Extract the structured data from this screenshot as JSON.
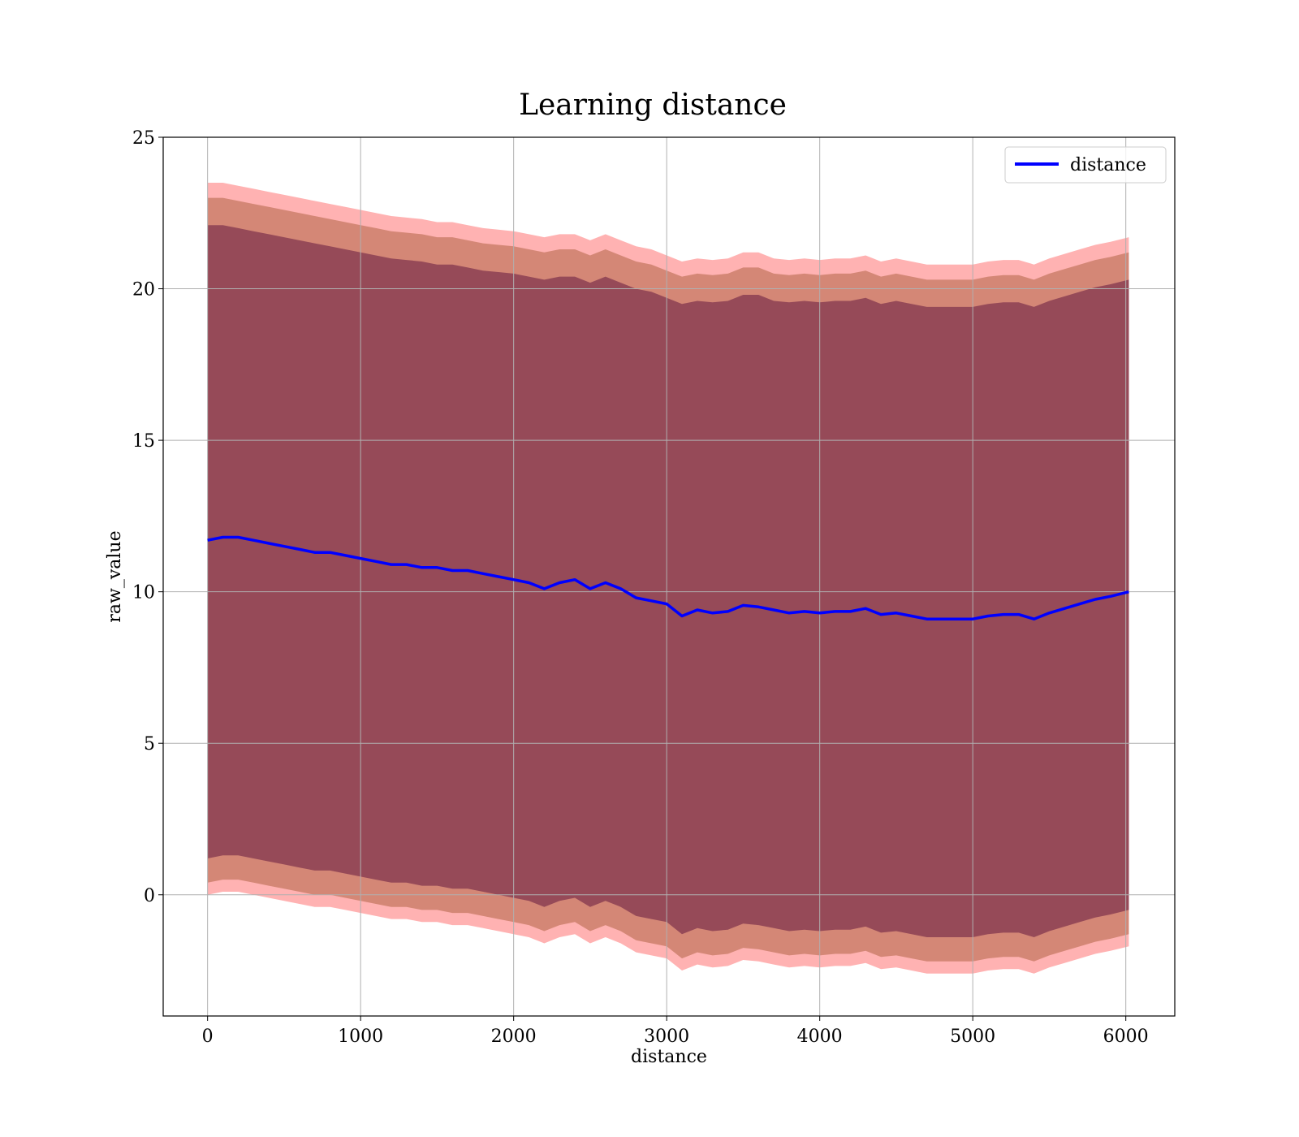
{
  "chart_data": {
    "type": "line",
    "title": "Learning distance",
    "xlabel": "distance",
    "ylabel": "raw_value",
    "xlim": [
      -290,
      6320
    ],
    "ylim": [
      -4,
      25
    ],
    "xticks": [
      0,
      1000,
      2000,
      3000,
      4000,
      5000,
      6000
    ],
    "yticks": [
      0,
      5,
      10,
      15,
      20,
      25
    ],
    "grid": true,
    "legend_position": "top-right",
    "colors": {
      "line": "#0000ff",
      "band_outer": "#ff0000",
      "band_middle": "#a0522d",
      "band_inner": "#4b0035",
      "grid": "#b0b0b0"
    },
    "series": [
      {
        "name": "distance",
        "x": [
          0,
          100,
          200,
          300,
          400,
          500,
          600,
          700,
          800,
          900,
          1000,
          1100,
          1200,
          1300,
          1400,
          1500,
          1600,
          1700,
          1800,
          1900,
          2000,
          2100,
          2200,
          2300,
          2400,
          2500,
          2600,
          2700,
          2800,
          2900,
          3000,
          3100,
          3200,
          3300,
          3400,
          3500,
          3600,
          3700,
          3800,
          3900,
          4000,
          4100,
          4200,
          4300,
          4400,
          4500,
          4600,
          4700,
          4800,
          4900,
          5000,
          5100,
          5200,
          5300,
          5400,
          5500,
          5600,
          5700,
          5800,
          5900,
          6020
        ],
        "y": [
          11.7,
          11.8,
          11.8,
          11.7,
          11.6,
          11.5,
          11.4,
          11.3,
          11.3,
          11.2,
          11.1,
          11.0,
          10.9,
          10.9,
          10.8,
          10.8,
          10.7,
          10.7,
          10.6,
          10.5,
          10.4,
          10.3,
          10.1,
          10.3,
          10.4,
          10.1,
          10.3,
          10.1,
          9.8,
          9.7,
          9.6,
          9.2,
          9.4,
          9.3,
          9.35,
          9.55,
          9.5,
          9.4,
          9.3,
          9.35,
          9.3,
          9.35,
          9.35,
          9.45,
          9.25,
          9.3,
          9.2,
          9.1,
          9.1,
          9.1,
          9.1,
          9.2,
          9.25,
          9.25,
          9.1,
          9.3,
          9.45,
          9.6,
          9.75,
          9.85,
          10.0
        ]
      }
    ],
    "bands": {
      "outer_upper": [
        23.5,
        23.5,
        23.4,
        23.3,
        23.2,
        23.1,
        23.0,
        22.9,
        22.8,
        22.7,
        22.6,
        22.5,
        22.4,
        22.35,
        22.3,
        22.2,
        22.2,
        22.1,
        22.0,
        21.95,
        21.9,
        21.8,
        21.7,
        21.8,
        21.8,
        21.6,
        21.8,
        21.6,
        21.4,
        21.3,
        21.1,
        20.9,
        21.0,
        20.95,
        21.0,
        21.2,
        21.2,
        21.0,
        20.95,
        21.0,
        20.95,
        21.0,
        21.0,
        21.1,
        20.9,
        21.0,
        20.9,
        20.8,
        20.8,
        20.8,
        20.8,
        20.9,
        20.95,
        20.95,
        20.8,
        21.0,
        21.15,
        21.3,
        21.45,
        21.55,
        21.7
      ],
      "middle_upper": [
        23.0,
        23.0,
        22.9,
        22.8,
        22.7,
        22.6,
        22.5,
        22.4,
        22.3,
        22.2,
        22.1,
        22.0,
        21.9,
        21.85,
        21.8,
        21.7,
        21.7,
        21.6,
        21.5,
        21.45,
        21.4,
        21.3,
        21.2,
        21.3,
        21.3,
        21.1,
        21.3,
        21.1,
        20.9,
        20.8,
        20.6,
        20.4,
        20.5,
        20.45,
        20.5,
        20.7,
        20.7,
        20.5,
        20.45,
        20.5,
        20.45,
        20.5,
        20.5,
        20.6,
        20.4,
        20.5,
        20.4,
        20.3,
        20.3,
        20.3,
        20.3,
        20.4,
        20.45,
        20.45,
        20.3,
        20.5,
        20.65,
        20.8,
        20.95,
        21.05,
        21.2
      ],
      "inner_upper": [
        22.1,
        22.1,
        22.0,
        21.9,
        21.8,
        21.7,
        21.6,
        21.5,
        21.4,
        21.3,
        21.2,
        21.1,
        21.0,
        20.95,
        20.9,
        20.8,
        20.8,
        20.7,
        20.6,
        20.55,
        20.5,
        20.4,
        20.3,
        20.4,
        20.4,
        20.2,
        20.4,
        20.2,
        20.0,
        19.9,
        19.7,
        19.5,
        19.6,
        19.55,
        19.6,
        19.8,
        19.8,
        19.6,
        19.55,
        19.6,
        19.55,
        19.6,
        19.6,
        19.7,
        19.5,
        19.6,
        19.5,
        19.4,
        19.4,
        19.4,
        19.4,
        19.5,
        19.55,
        19.55,
        19.4,
        19.6,
        19.75,
        19.9,
        20.05,
        20.15,
        20.3
      ],
      "inner_lower": [
        1.2,
        1.3,
        1.3,
        1.2,
        1.1,
        1.0,
        0.9,
        0.8,
        0.8,
        0.7,
        0.6,
        0.5,
        0.4,
        0.4,
        0.3,
        0.3,
        0.2,
        0.2,
        0.1,
        0.0,
        -0.1,
        -0.2,
        -0.4,
        -0.2,
        -0.1,
        -0.4,
        -0.2,
        -0.4,
        -0.7,
        -0.8,
        -0.9,
        -1.3,
        -1.1,
        -1.2,
        -1.15,
        -0.95,
        -1.0,
        -1.1,
        -1.2,
        -1.15,
        -1.2,
        -1.15,
        -1.15,
        -1.05,
        -1.25,
        -1.2,
        -1.3,
        -1.4,
        -1.4,
        -1.4,
        -1.4,
        -1.3,
        -1.25,
        -1.25,
        -1.4,
        -1.2,
        -1.05,
        -0.9,
        -0.75,
        -0.65,
        -0.5
      ],
      "middle_lower": [
        0.4,
        0.5,
        0.5,
        0.4,
        0.3,
        0.2,
        0.1,
        0.0,
        0.0,
        -0.1,
        -0.2,
        -0.3,
        -0.4,
        -0.4,
        -0.5,
        -0.5,
        -0.6,
        -0.6,
        -0.7,
        -0.8,
        -0.9,
        -1.0,
        -1.2,
        -1.0,
        -0.9,
        -1.2,
        -1.0,
        -1.2,
        -1.5,
        -1.6,
        -1.7,
        -2.1,
        -1.9,
        -2.0,
        -1.95,
        -1.75,
        -1.8,
        -1.9,
        -2.0,
        -1.95,
        -2.0,
        -1.95,
        -1.95,
        -1.85,
        -2.05,
        -2.0,
        -2.1,
        -2.2,
        -2.2,
        -2.2,
        -2.2,
        -2.1,
        -2.05,
        -2.05,
        -2.2,
        -2.0,
        -1.85,
        -1.7,
        -1.55,
        -1.45,
        -1.3
      ],
      "outer_lower": [
        0.0,
        0.1,
        0.1,
        0.0,
        -0.1,
        -0.2,
        -0.3,
        -0.4,
        -0.4,
        -0.5,
        -0.6,
        -0.7,
        -0.8,
        -0.8,
        -0.9,
        -0.9,
        -1.0,
        -1.0,
        -1.1,
        -1.2,
        -1.3,
        -1.4,
        -1.6,
        -1.4,
        -1.3,
        -1.6,
        -1.4,
        -1.6,
        -1.9,
        -2.0,
        -2.1,
        -2.5,
        -2.3,
        -2.4,
        -2.35,
        -2.15,
        -2.2,
        -2.3,
        -2.4,
        -2.35,
        -2.4,
        -2.35,
        -2.35,
        -2.25,
        -2.45,
        -2.4,
        -2.5,
        -2.6,
        -2.6,
        -2.6,
        -2.6,
        -2.5,
        -2.45,
        -2.45,
        -2.6,
        -2.4,
        -2.25,
        -2.1,
        -1.95,
        -1.85,
        -1.7
      ]
    }
  }
}
